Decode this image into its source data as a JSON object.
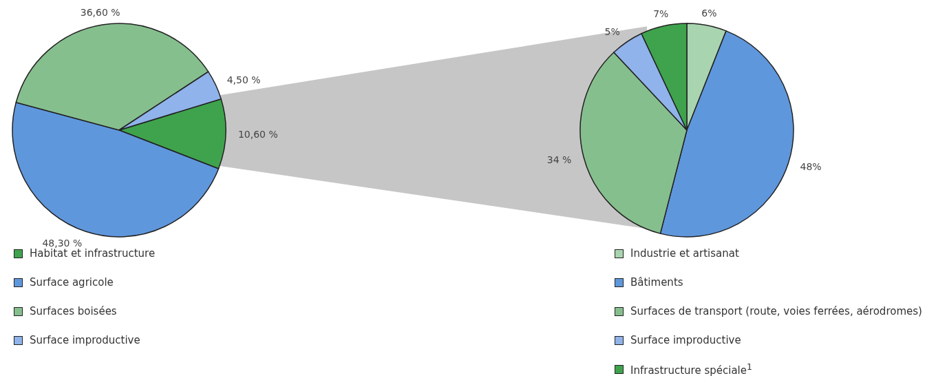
{
  "chart_data": [
    {
      "type": "pie",
      "categories": [
        "Habitat et infrastructure",
        "Surface agricole",
        "Surfaces boisées",
        "Surface improductive"
      ],
      "values": [
        10.6,
        48.3,
        36.6,
        4.5
      ],
      "colors": [
        "#3fa34d",
        "#5f97dd",
        "#86bf8e",
        "#8fb3ea"
      ],
      "value_labels": [
        "10,60 %",
        "48,30 %",
        "36,60 %",
        "4,50 %"
      ],
      "legend": "bottom"
    },
    {
      "type": "pie",
      "categories": [
        "Industrie et artisanat",
        "Bâtiments",
        "Surfaces de transport (route, voies ferrées, aérodromes)",
        "Surface improductive",
        "Infrastructure spéciale$^{1}$"
      ],
      "values": [
        6,
        48,
        34,
        5,
        7
      ],
      "colors": [
        "#a9d4b0",
        "#5f97dd",
        "#86bf8e",
        "#8fb3ea",
        "#3fa34d"
      ],
      "value_labels": [
        "6%",
        "48%",
        "34 %",
        "5%",
        "7%"
      ],
      "legend": "bottom"
    }
  ]
}
